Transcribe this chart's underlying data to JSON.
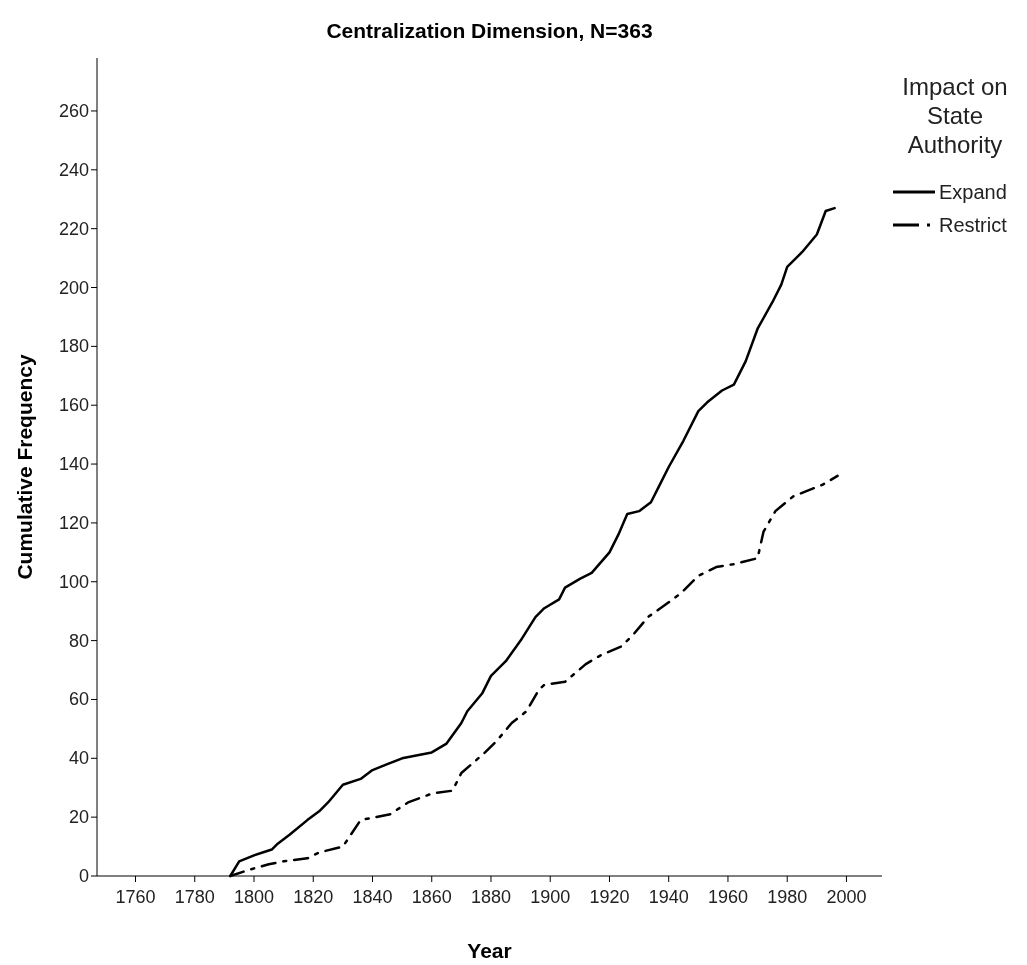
{
  "chart_data": {
    "type": "line",
    "title": "Centralization Dimension, N=363",
    "xlabel": "Year",
    "ylabel": "Cumulative Frequency",
    "legend_title": "Impact on State Authority",
    "legend": "top right",
    "xlim": [
      1747,
      2012
    ],
    "xticks": [
      1760,
      1780,
      1800,
      1820,
      1840,
      1860,
      1880,
      1900,
      1920,
      1940,
      1960,
      1980,
      2000
    ],
    "ylim": [
      0,
      278
    ],
    "yticks": [
      0,
      20,
      40,
      60,
      80,
      100,
      120,
      140,
      160,
      180,
      200,
      220,
      240,
      260
    ],
    "grid": false,
    "marker": "none",
    "series": [
      {
        "name": "Expand",
        "color": "#000000",
        "line_style": "solid",
        "x": [
          1792,
          1795,
          1800,
          1806,
          1808,
          1812,
          1818,
          1822,
          1825,
          1830,
          1836,
          1840,
          1845,
          1850,
          1860,
          1865,
          1870,
          1872,
          1877,
          1880,
          1885,
          1890,
          1895,
          1898,
          1903,
          1905,
          1910,
          1914,
          1920,
          1923,
          1926,
          1930,
          1934,
          1937,
          1940,
          1945,
          1950,
          1953,
          1958,
          1962,
          1966,
          1970,
          1975,
          1978,
          1980,
          1985,
          1990,
          1993,
          1996
        ],
        "values": [
          0,
          5,
          7,
          9,
          11,
          14,
          19,
          22,
          25,
          31,
          33,
          36,
          38,
          40,
          42,
          45,
          52,
          56,
          62,
          68,
          73,
          80,
          88,
          91,
          94,
          98,
          101,
          103,
          110,
          116,
          123,
          124,
          127,
          133,
          139,
          148,
          158,
          161,
          165,
          167,
          175,
          186,
          195,
          201,
          207,
          212,
          218,
          226,
          227
        ]
      },
      {
        "name": "Restrict",
        "color": "#000000",
        "line_style": "dashdot",
        "x": [
          1792,
          1798,
          1805,
          1810,
          1818,
          1822,
          1830,
          1836,
          1846,
          1852,
          1860,
          1867,
          1870,
          1878,
          1882,
          1887,
          1892,
          1896,
          1898,
          1905,
          1912,
          1917,
          1924,
          1928,
          1933,
          1940,
          1944,
          1950,
          1956,
          1962,
          1970,
          1972,
          1976,
          1982,
          1992,
          1997
        ],
        "values": [
          0,
          2,
          4,
          5,
          6,
          8,
          10,
          19,
          21,
          25,
          28,
          29,
          35,
          42,
          46,
          52,
          56,
          63,
          65,
          66,
          72,
          75,
          78,
          82,
          88,
          93,
          96,
          102,
          105,
          106,
          108,
          117,
          124,
          129,
          133,
          136
        ]
      }
    ]
  }
}
